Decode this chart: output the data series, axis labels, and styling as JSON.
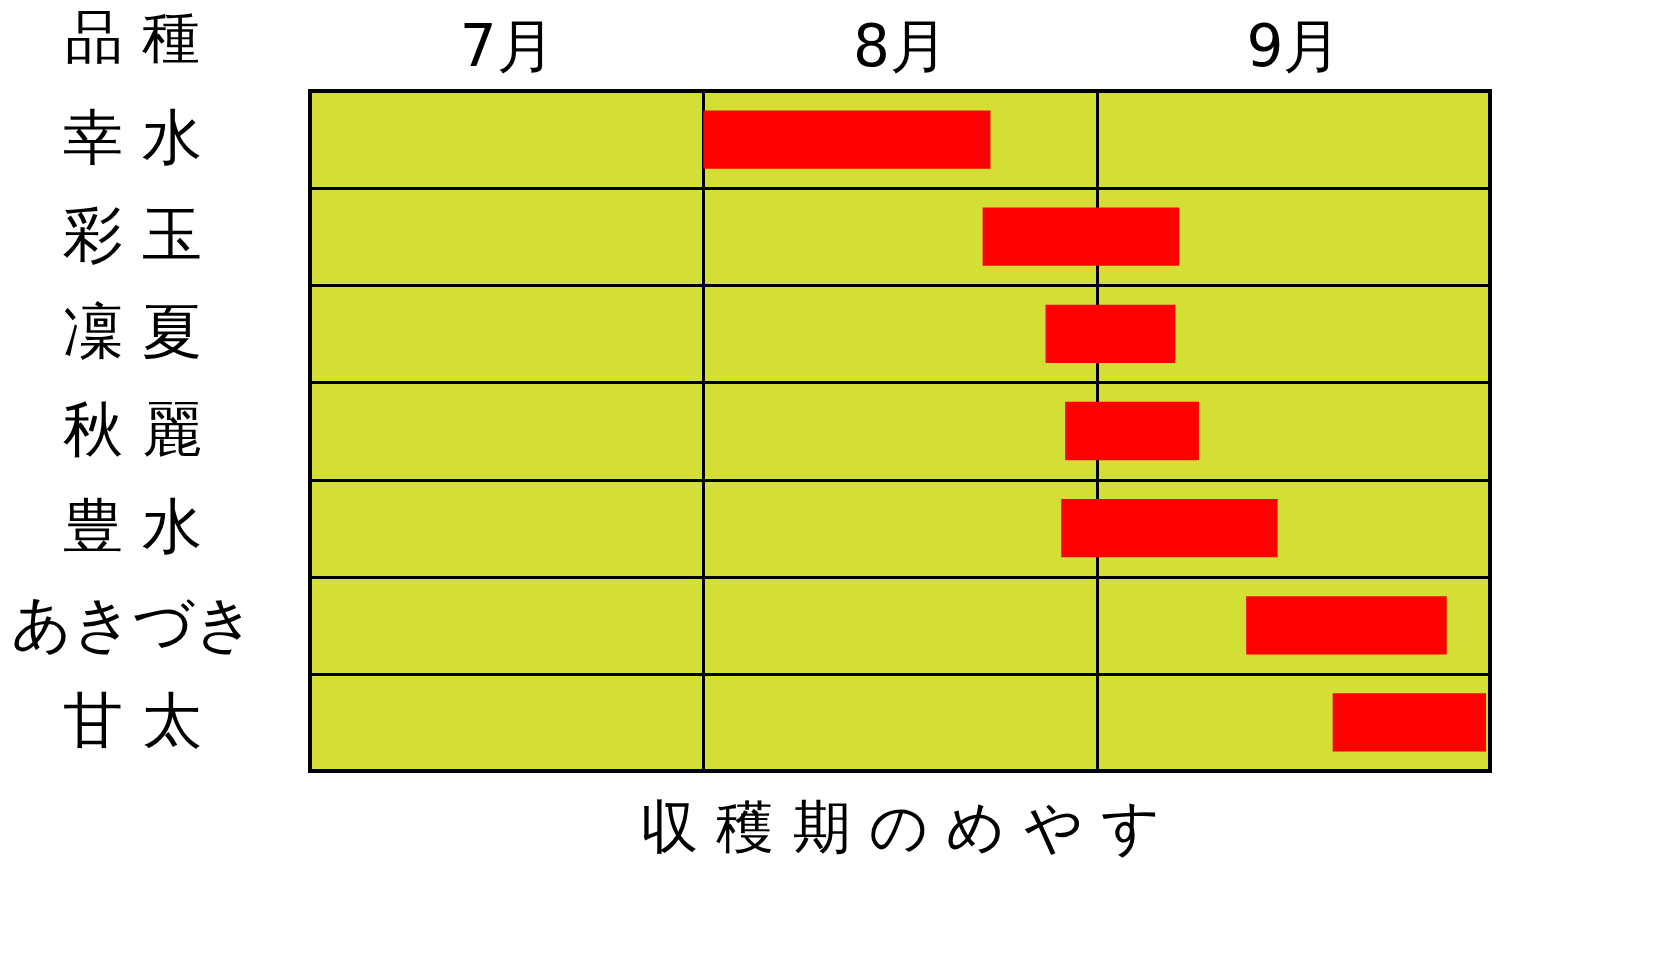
{
  "chart_data": {
    "type": "bar",
    "orientation": "horizontal",
    "title": "収 穫 期 の め や す",
    "ylabel": "品 種",
    "categories": [
      "幸 水",
      "彩 玉",
      "凜 夏",
      "秋 麗",
      "豊 水",
      "あきづき",
      "甘 太"
    ],
    "base": [
      8.0,
      8.71,
      8.87,
      8.92,
      8.91,
      9.38,
      9.6
    ],
    "values": [
      0.73,
      0.5,
      0.33,
      0.34,
      0.55,
      0.51,
      0.39
    ],
    "color": "#ff0000",
    "xlim": [
      7,
      10
    ],
    "xticks": [
      {
        "value": 7,
        "label": null
      },
      {
        "value": 7.5,
        "label": "7月"
      },
      {
        "value": 8,
        "label": null
      },
      {
        "value": 8.5,
        "label": "8月"
      },
      {
        "value": 9,
        "label": null
      },
      {
        "value": 9.5,
        "label": "9月"
      },
      {
        "value": 10,
        "label": null
      }
    ],
    "grid": true
  }
}
